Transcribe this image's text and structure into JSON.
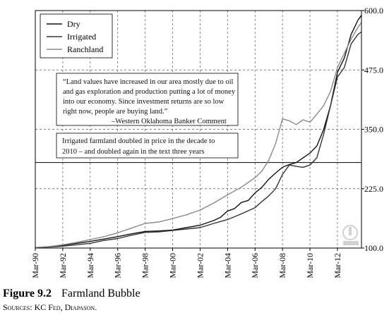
{
  "figure": {
    "number": "Figure 9.2",
    "title": "Farmland Bubble",
    "sources_label": "Sources:",
    "sources_text": "KC Fed, Diapason."
  },
  "chart_data": {
    "type": "line",
    "title": "",
    "xlabel": "",
    "ylabel": "",
    "x_start_year": 1990,
    "x_end_year": 2014,
    "xlim": [
      "1990-03",
      "2013-12"
    ],
    "ylim": [
      100,
      600
    ],
    "y_axis_side": "right",
    "grid": true,
    "legend_position": "top-left",
    "x_tick_labels": [
      "Mar-90",
      "Mar-92",
      "Mar-94",
      "Mar-96",
      "Mar-98",
      "Mar-00",
      "Mar-02",
      "Mar-04",
      "Mar-06",
      "Mar-08",
      "Mar-10",
      "Mar-12"
    ],
    "x_ticks": [
      "1990-03",
      "1992-03",
      "1994-03",
      "1996-03",
      "1998-03",
      "2000-03",
      "2002-03",
      "2004-03",
      "2006-03",
      "2008-03",
      "2010-03",
      "2012-03"
    ],
    "y_ticks": [
      100.0,
      225.0,
      350.0,
      475.0,
      600.0
    ],
    "y_tick_labels": [
      "100.0",
      "225.0",
      "350.0",
      "475.0",
      "600.0"
    ],
    "reference_line": {
      "y": 280
    },
    "series": [
      {
        "name": "Dry",
        "color": "#111111",
        "points": [
          [
            "1990-03",
            101
          ],
          [
            "1991-03",
            103
          ],
          [
            "1992-03",
            106
          ],
          [
            "1993-03",
            110
          ],
          [
            "1994-03",
            114
          ],
          [
            "1995-03",
            119
          ],
          [
            "1996-03",
            124
          ],
          [
            "1997-03",
            130
          ],
          [
            "1998-03",
            135
          ],
          [
            "1999-03",
            136
          ],
          [
            "2000-03",
            138
          ],
          [
            "2001-03",
            143
          ],
          [
            "2002-03",
            148
          ],
          [
            "2003-03",
            158
          ],
          [
            "2003-09",
            165
          ],
          [
            "2004-03",
            178
          ],
          [
            "2004-09",
            183
          ],
          [
            "2005-03",
            196
          ],
          [
            "2005-09",
            200
          ],
          [
            "2006-03",
            216
          ],
          [
            "2006-09",
            228
          ],
          [
            "2007-03",
            245
          ],
          [
            "2007-09",
            258
          ],
          [
            "2008-03",
            270
          ],
          [
            "2008-09",
            276
          ],
          [
            "2009-03",
            280
          ],
          [
            "2009-09",
            290
          ],
          [
            "2010-03",
            300
          ],
          [
            "2010-09",
            315
          ],
          [
            "2011-03",
            350
          ],
          [
            "2011-09",
            400
          ],
          [
            "2012-03",
            470
          ],
          [
            "2012-09",
            500
          ],
          [
            "2013-03",
            550
          ],
          [
            "2013-09",
            580
          ],
          [
            "2013-12",
            590
          ]
        ]
      },
      {
        "name": "Irrigated",
        "color": "#333333",
        "points": [
          [
            "1990-03",
            101
          ],
          [
            "1991-03",
            102
          ],
          [
            "1992-03",
            104
          ],
          [
            "1993-03",
            107
          ],
          [
            "1994-03",
            110
          ],
          [
            "1995-03",
            116
          ],
          [
            "1996-03",
            120
          ],
          [
            "1997-03",
            127
          ],
          [
            "1998-03",
            133
          ],
          [
            "1999-03",
            134
          ],
          [
            "2000-03",
            137
          ],
          [
            "2001-03",
            140
          ],
          [
            "2002-03",
            143
          ],
          [
            "2003-03",
            152
          ],
          [
            "2004-03",
            160
          ],
          [
            "2005-03",
            172
          ],
          [
            "2006-03",
            185
          ],
          [
            "2006-09",
            198
          ],
          [
            "2007-03",
            210
          ],
          [
            "2007-09",
            225
          ],
          [
            "2008-03",
            255
          ],
          [
            "2008-09",
            275
          ],
          [
            "2009-03",
            272
          ],
          [
            "2009-09",
            270
          ],
          [
            "2010-03",
            275
          ],
          [
            "2010-09",
            290
          ],
          [
            "2011-03",
            340
          ],
          [
            "2011-09",
            400
          ],
          [
            "2012-03",
            460
          ],
          [
            "2012-09",
            480
          ],
          [
            "2013-03",
            530
          ],
          [
            "2013-09",
            550
          ],
          [
            "2013-12",
            555
          ]
        ]
      },
      {
        "name": "Ranchland",
        "color": "#8a8a8a",
        "points": [
          [
            "1990-03",
            101
          ],
          [
            "1991-03",
            103
          ],
          [
            "1992-03",
            107
          ],
          [
            "1993-03",
            112
          ],
          [
            "1994-03",
            118
          ],
          [
            "1995-03",
            124
          ],
          [
            "1996-03",
            132
          ],
          [
            "1997-03",
            142
          ],
          [
            "1998-03",
            152
          ],
          [
            "1999-03",
            155
          ],
          [
            "2000-03",
            162
          ],
          [
            "2001-03",
            170
          ],
          [
            "2002-03",
            180
          ],
          [
            "2003-03",
            195
          ],
          [
            "2004-03",
            212
          ],
          [
            "2005-03",
            228
          ],
          [
            "2006-03",
            248
          ],
          [
            "2006-09",
            262
          ],
          [
            "2007-03",
            285
          ],
          [
            "2007-09",
            320
          ],
          [
            "2008-03",
            372
          ],
          [
            "2008-09",
            368
          ],
          [
            "2009-03",
            360
          ],
          [
            "2009-09",
            370
          ],
          [
            "2010-03",
            365
          ],
          [
            "2010-09",
            382
          ],
          [
            "2011-03",
            400
          ],
          [
            "2011-09",
            430
          ],
          [
            "2012-03",
            480
          ],
          [
            "2012-09",
            510
          ],
          [
            "2013-03",
            540
          ],
          [
            "2013-09",
            565
          ],
          [
            "2013-12",
            575
          ]
        ]
      }
    ],
    "annotations": [
      {
        "lines": [
          "“Land values have increased in our area mostly due to oil",
          "and gas exploration and production putting a lot of money",
          "into our economy. Since investment returns are so low",
          "right now, people are buying land.”"
        ],
        "attribution": "–Western Oklahoma Banker Comment"
      },
      {
        "lines": [
          "Irrigated farmland doubled in price in the decade to",
          "2010 – and doubled again in the text three years"
        ]
      }
    ]
  }
}
